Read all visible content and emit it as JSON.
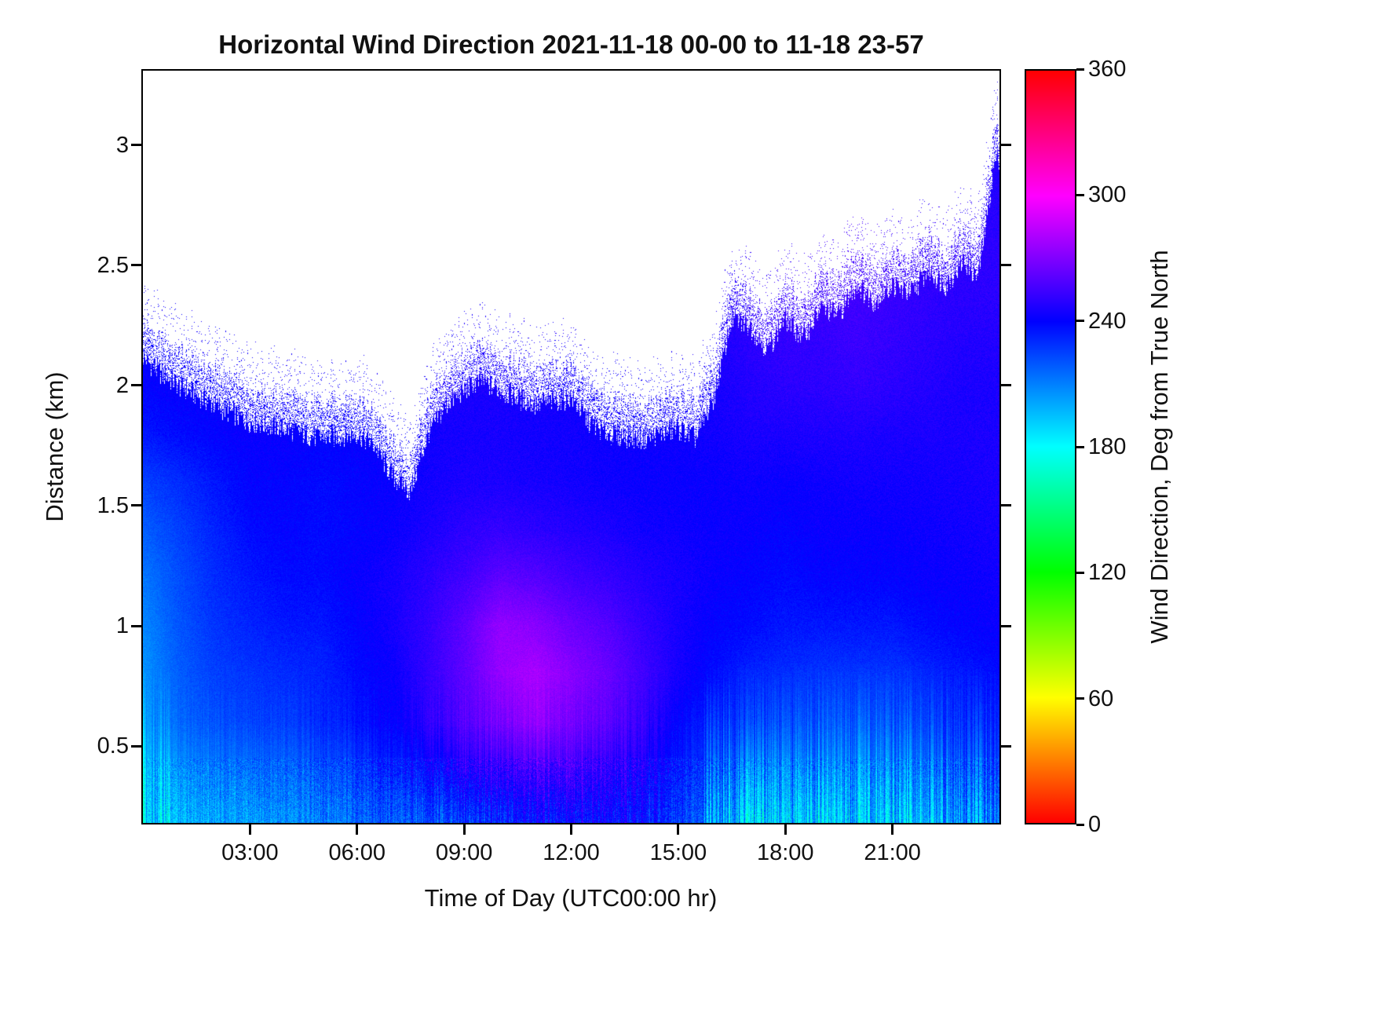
{
  "figure": {
    "title": "Horizontal Wind Direction 2021-11-18 00-00 to 11-18 23-57",
    "xlabel": "Time of Day (UTC00:00 hr)",
    "ylabel": "Distance (km)",
    "colorbar_label": "Wind Direction, Deg from True North"
  },
  "chart_data": {
    "type": "heatmap",
    "title": "Horizontal Wind Direction 2021-11-18 00-00 to 11-18 23-57",
    "xlabel": "Time of Day (UTC00:00 hr)",
    "ylabel": "Distance (km)",
    "x_range_hours": [
      0,
      24
    ],
    "y_range_km": [
      0.18,
      3.31
    ],
    "grid": "off",
    "x_ticks": [
      {
        "hour": 3,
        "label": "03:00"
      },
      {
        "hour": 6,
        "label": "06:00"
      },
      {
        "hour": 9,
        "label": "09:00"
      },
      {
        "hour": 12,
        "label": "12:00"
      },
      {
        "hour": 15,
        "label": "15:00"
      },
      {
        "hour": 18,
        "label": "18:00"
      },
      {
        "hour": 21,
        "label": "21:00"
      }
    ],
    "y_ticks": [
      {
        "km": 0.5,
        "label": "0.5"
      },
      {
        "km": 1,
        "label": "1"
      },
      {
        "km": 1.5,
        "label": "1.5"
      },
      {
        "km": 2,
        "label": "2"
      },
      {
        "km": 2.5,
        "label": "2.5"
      },
      {
        "km": 3,
        "label": "3"
      }
    ],
    "colorbar": {
      "label": "Wind Direction, Deg from True North",
      "min": 0,
      "max": 360,
      "colormap": "hsv",
      "ticks": [
        {
          "deg": 0,
          "label": "0"
        },
        {
          "deg": 60,
          "label": "60"
        },
        {
          "deg": 120,
          "label": "120"
        },
        {
          "deg": 180,
          "label": "180"
        },
        {
          "deg": 240,
          "label": "240"
        },
        {
          "deg": 300,
          "label": "300"
        },
        {
          "deg": 360,
          "label": "360"
        }
      ],
      "gradient_stops": [
        "#ff0000 0%",
        "#ffff00 16.67%",
        "#00ff00 33.33%",
        "#00ffff 50%",
        "#0000ff 66.67%",
        "#ff00ff 83.33%",
        "#ff0000 100%"
      ]
    },
    "grid_times_hr": [
      0,
      1,
      2,
      3,
      4,
      5,
      6,
      7,
      8,
      9,
      10,
      11,
      12,
      13,
      14,
      15,
      16,
      17,
      18,
      19,
      20,
      21,
      22,
      23,
      24
    ],
    "grid_heights_km": [
      0.2,
      0.4,
      0.6,
      0.8,
      1.0,
      1.2,
      1.4,
      1.6,
      1.8,
      2.0,
      2.2,
      2.4,
      2.6,
      2.8,
      3.0
    ],
    "values_deg": [
      [
        185,
        195,
        200,
        205,
        205,
        210,
        215,
        218,
        222,
        228,
        232,
        238,
        240,
        240,
        235,
        228,
        215,
        200,
        205,
        200,
        205,
        200,
        210,
        215,
        220
      ],
      [
        190,
        205,
        210,
        215,
        215,
        220,
        225,
        232,
        238,
        248,
        252,
        256,
        256,
        250,
        245,
        235,
        225,
        215,
        215,
        215,
        213,
        212,
        220,
        225,
        230
      ],
      [
        200,
        215,
        220,
        225,
        225,
        230,
        235,
        240,
        250,
        260,
        268,
        275,
        268,
        262,
        252,
        240,
        232,
        228,
        225,
        224,
        222,
        222,
        228,
        232,
        235
      ],
      [
        205,
        218,
        225,
        228,
        230,
        232,
        238,
        242,
        252,
        262,
        275,
        280,
        272,
        265,
        255,
        245,
        238,
        232,
        230,
        228,
        228,
        228,
        232,
        235,
        238
      ],
      [
        208,
        220,
        228,
        232,
        235,
        235,
        240,
        245,
        252,
        262,
        275,
        272,
        265,
        260,
        252,
        245,
        240,
        238,
        235,
        235,
        235,
        235,
        238,
        240,
        242
      ],
      [
        212,
        222,
        230,
        235,
        238,
        238,
        242,
        245,
        250,
        255,
        262,
        260,
        255,
        252,
        248,
        245,
        242,
        240,
        238,
        240,
        240,
        240,
        242,
        242,
        244
      ],
      [
        218,
        225,
        232,
        238,
        240,
        238,
        240,
        242,
        246,
        250,
        252,
        250,
        248,
        246,
        244,
        243,
        242,
        242,
        240,
        242,
        242,
        242,
        243,
        244,
        245
      ],
      [
        225,
        230,
        235,
        240,
        240,
        238,
        240,
        242,
        244,
        246,
        246,
        245,
        244,
        243,
        242,
        242,
        242,
        243,
        242,
        243,
        244,
        244,
        244,
        245,
        246
      ],
      [
        235,
        238,
        240,
        242,
        242,
        240,
        241,
        242,
        244,
        245,
        245,
        244,
        244,
        243,
        243,
        243,
        244,
        246,
        246,
        247,
        247,
        246,
        246,
        246,
        246
      ],
      [
        240,
        242,
        242,
        243,
        244,
        244,
        244,
        245,
        246,
        246,
        246,
        245,
        244,
        244,
        244,
        244,
        245,
        248,
        250,
        250,
        252,
        250,
        248,
        246,
        246
      ],
      [
        242,
        243,
        244,
        244,
        245,
        245,
        245,
        245,
        246,
        246,
        246,
        246,
        245,
        245,
        245,
        245,
        246,
        250,
        252,
        252,
        254,
        252,
        250,
        248,
        248
      ],
      [
        244,
        245,
        245,
        246,
        246,
        246,
        246,
        246,
        247,
        247,
        247,
        247,
        246,
        246,
        246,
        246,
        247,
        251,
        253,
        254,
        255,
        253,
        251,
        250,
        250
      ],
      [
        246,
        246,
        246,
        247,
        247,
        247,
        247,
        247,
        248,
        248,
        248,
        248,
        247,
        247,
        247,
        247,
        248,
        252,
        254,
        255,
        256,
        254,
        252,
        251,
        250
      ],
      [
        247,
        247,
        247,
        248,
        248,
        248,
        248,
        248,
        248,
        248,
        248,
        248,
        248,
        248,
        248,
        248,
        249,
        252,
        254,
        255,
        256,
        254,
        252,
        250,
        248
      ],
      [
        248,
        248,
        248,
        248,
        248,
        248,
        248,
        248,
        248,
        248,
        248,
        248,
        248,
        248,
        248,
        248,
        249,
        252,
        254,
        255,
        256,
        254,
        252,
        250,
        246
      ]
    ],
    "top_boundary": {
      "times_hr": [
        0,
        0.5,
        1,
        2,
        3,
        4,
        5,
        6,
        6.5,
        7,
        7.5,
        8,
        8.5,
        9,
        9.5,
        10,
        11,
        12,
        12.5,
        13,
        14,
        15,
        15.5,
        16,
        16.5,
        17,
        17.5,
        18,
        18.5,
        19,
        19.5,
        20,
        20.5,
        21,
        21.5,
        22,
        22.5,
        23,
        23.4,
        23.7,
        23.85,
        24
      ],
      "heights_km": [
        2.12,
        2.05,
        2.0,
        1.92,
        1.85,
        1.82,
        1.78,
        1.8,
        1.75,
        1.62,
        1.56,
        1.8,
        1.92,
        1.98,
        2.02,
        1.98,
        1.92,
        1.95,
        1.85,
        1.8,
        1.78,
        1.82,
        1.78,
        1.95,
        2.28,
        2.25,
        2.15,
        2.28,
        2.2,
        2.32,
        2.3,
        2.42,
        2.35,
        2.42,
        2.38,
        2.48,
        2.42,
        2.52,
        2.45,
        2.75,
        2.92,
        2.95
      ]
    }
  }
}
